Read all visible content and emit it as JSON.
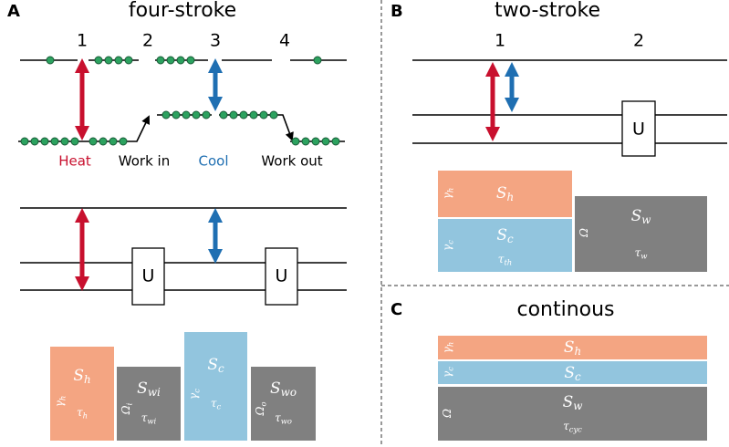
{
  "panels": {
    "A": {
      "letter": "A",
      "title": "four-stroke",
      "steps": [
        "1",
        "2",
        "3",
        "4"
      ],
      "strokes": [
        "Heat",
        "Work in",
        "Cool",
        "Work out"
      ],
      "gate": "U",
      "blocks": [
        {
          "s": "S",
          "s_sub": "h",
          "rate": "γ",
          "rate_sub": "h",
          "tau": "τ",
          "tau_sub": "h"
        },
        {
          "s": "S",
          "s_sub": "wi",
          "rate": "Ω",
          "rate_sub": "i",
          "tau": "τ",
          "tau_sub": "wi"
        },
        {
          "s": "S",
          "s_sub": "c",
          "rate": "γ",
          "rate_sub": "c",
          "tau": "τ",
          "tau_sub": "c"
        },
        {
          "s": "S",
          "s_sub": "wo",
          "rate": "Ω",
          "rate_sub": "o",
          "tau": "τ",
          "tau_sub": "wo"
        }
      ]
    },
    "B": {
      "letter": "B",
      "title": "two-stroke",
      "steps": [
        "1",
        "2"
      ],
      "gate": "U",
      "blocks": [
        {
          "s": "S",
          "s_sub": "h",
          "rate": "γ",
          "rate_sub": "h"
        },
        {
          "s": "S",
          "s_sub": "c",
          "rate": "γ",
          "rate_sub": "c",
          "tau": "τ",
          "tau_sub": "th"
        },
        {
          "s": "S",
          "s_sub": "w",
          "rate": "Ω",
          "tau": "τ",
          "tau_sub": "w"
        }
      ]
    },
    "C": {
      "letter": "C",
      "title": "continous",
      "blocks": [
        {
          "s": "S",
          "s_sub": "h",
          "rate": "γ",
          "rate_sub": "h"
        },
        {
          "s": "S",
          "s_sub": "c",
          "rate": "γ",
          "rate_sub": "c"
        },
        {
          "s": "S",
          "s_sub": "w",
          "rate": "Ω",
          "tau": "τ",
          "tau_sub": "cyc"
        }
      ]
    }
  }
}
